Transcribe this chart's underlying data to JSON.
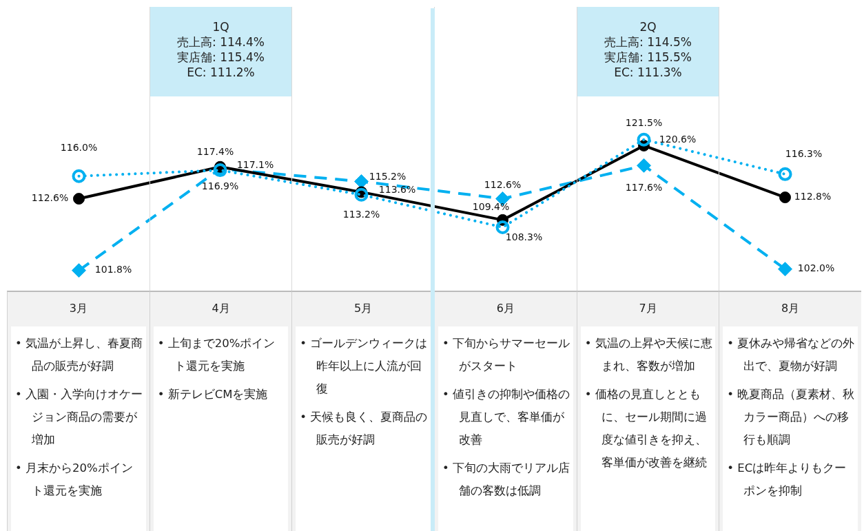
{
  "chart_data": {
    "type": "line",
    "categories": [
      "3月",
      "4月",
      "5月",
      "6月",
      "7月",
      "8月"
    ],
    "series": [
      {
        "color": "#000000",
        "marker": "circle",
        "line_style": "solid",
        "values": [
          112.6,
          117.4,
          113.6,
          109.4,
          120.6,
          112.8
        ],
        "value_labels": [
          "112.6%",
          "117.4%",
          "113.6%",
          "109.4%",
          "120.6%",
          "112.8%"
        ]
      },
      {
        "color": "#00b0f0",
        "marker": "circle",
        "line_style": "dotted",
        "values": [
          116.0,
          116.9,
          113.2,
          108.3,
          121.5,
          116.3
        ],
        "value_labels": [
          "116.0%",
          "116.9%",
          "113.2%",
          "108.3%",
          "121.5%",
          "116.3%"
        ]
      },
      {
        "color": "#00b0f0",
        "marker": "diamond",
        "line_style": "dashed",
        "values": [
          101.8,
          117.1,
          115.2,
          112.6,
          117.6,
          102.0
        ],
        "value_labels": [
          "101.8%",
          "117.1%",
          "115.2%",
          "112.6%",
          "117.6%",
          "102.0%"
        ]
      }
    ],
    "annotations": [
      "1Q\n売上高: 114.4%\n実店舗: 115.4%\nEC: 111.2%",
      "2Q\n売上高: 114.5%\n実店舗: 115.5%\nEC: 111.3%",
      "• 気温が上昇し、春夏商品の販売が好調",
      "• 入園・入学向けオケージョン商品の需要が増加",
      "• 月末から20%ポイント還元を実施",
      "• 上旬まで20%ポイント還元を実施",
      "• 新テレビCMを実施",
      "• ゴールデンウィークは昨年以上に人流が回復",
      "• 天候も良く、夏商品の販売が好調",
      "• 下旬からサマーセールがスタート",
      "• 値引きの抑制や価格の見直しで、客単価が改善",
      "• 下旬の大雨でリアル店舗の客数は低調",
      "• 気温の上昇や天候に恵まれ、客数が増加",
      "• 価格の見直しとともに、セール期間に過度な値引きを抑え、客単価が改善を継続",
      "• 夏休みや帰省などの外出で、夏物が好調",
      "• 晩夏商品（夏素材、秋カラー商品）への移行も順調",
      "• ECは昨年よりもクーポンを抑制"
    ]
  }
}
